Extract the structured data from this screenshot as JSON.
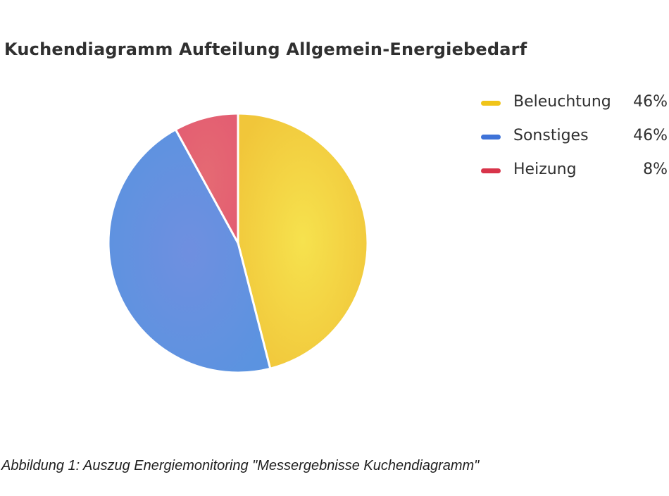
{
  "chart_data": {
    "type": "pie",
    "title": "Kuchendiagramm Aufteilung Allgemein-Energiebedarf",
    "slices": [
      {
        "label": "Beleuchtung",
        "value": 46,
        "value_label": "46%",
        "color": "#f2cd3c"
      },
      {
        "label": "Sonstiges",
        "value": 46,
        "value_label": "46%",
        "color": "#5f8fde"
      },
      {
        "label": "Heizung",
        "value": 8,
        "value_label": "8%",
        "color": "#e06070"
      }
    ],
    "legend_position": "right",
    "swatch_colors": [
      "#f0c419",
      "#3f73d8",
      "#d8344a"
    ]
  },
  "caption": "Abbildung 1: Auszug Energiemonitoring \"Messergebnisse Kuchendiagramm\""
}
